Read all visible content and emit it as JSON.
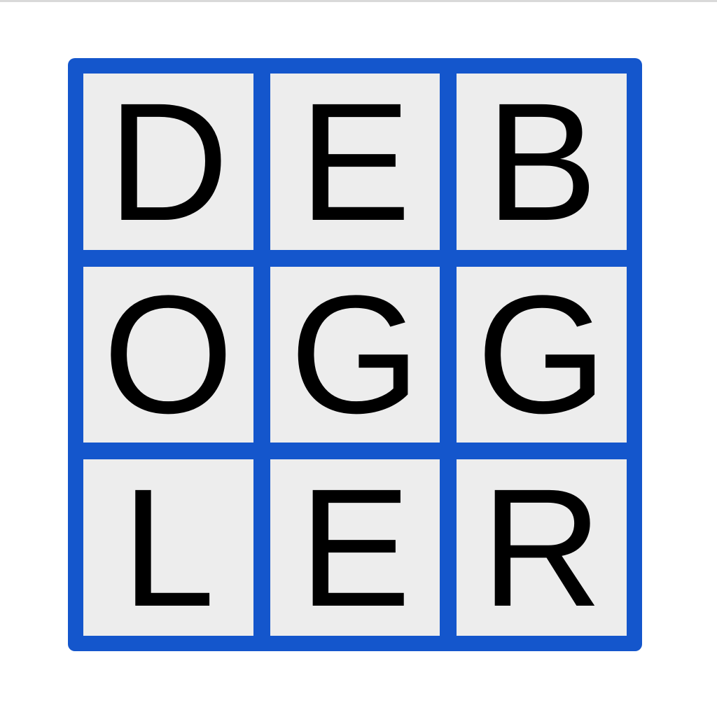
{
  "colors": {
    "board": "#1456cc",
    "tile": "#ededed",
    "letter": "#000000"
  },
  "board": {
    "tiles": [
      "D",
      "E",
      "B",
      "O",
      "G",
      "G",
      "L",
      "E",
      "R"
    ]
  }
}
